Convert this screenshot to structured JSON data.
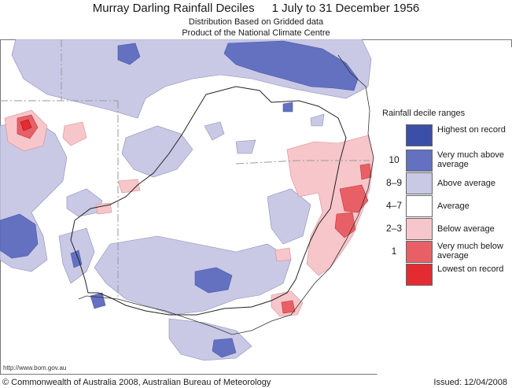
{
  "header": {
    "title_main": "Murray Darling Rainfall Deciles",
    "title_period": "1 July to 31 December 1956",
    "subtitle1": "Distribution Based on Gridded data",
    "subtitle2": "Product of the National Climate Centre"
  },
  "legend": {
    "title": "Rainfall decile ranges",
    "items": [
      {
        "decile": "",
        "label": "Highest on record",
        "color": "#3c4fa8"
      },
      {
        "decile": "10",
        "label": "Very much above average",
        "color": "#6371c0"
      },
      {
        "decile": "8–9",
        "label": "Above average",
        "color": "#c9c9e6"
      },
      {
        "decile": "4–7",
        "label": "Average",
        "color": "#ffffff"
      },
      {
        "decile": "2–3",
        "label": "Below average",
        "color": "#f6c6ca"
      },
      {
        "decile": "1",
        "label": "Very much below average",
        "color": "#e86066"
      },
      {
        "decile": "",
        "label": "Lowest on record",
        "color": "#e52b32"
      }
    ]
  },
  "footer": {
    "url": "http://www.bom.gov.au",
    "copyright": "© Commonwealth of Australia 2008, Australian Bureau of Meteorology",
    "issued": "Issued: 12/04/2008"
  }
}
